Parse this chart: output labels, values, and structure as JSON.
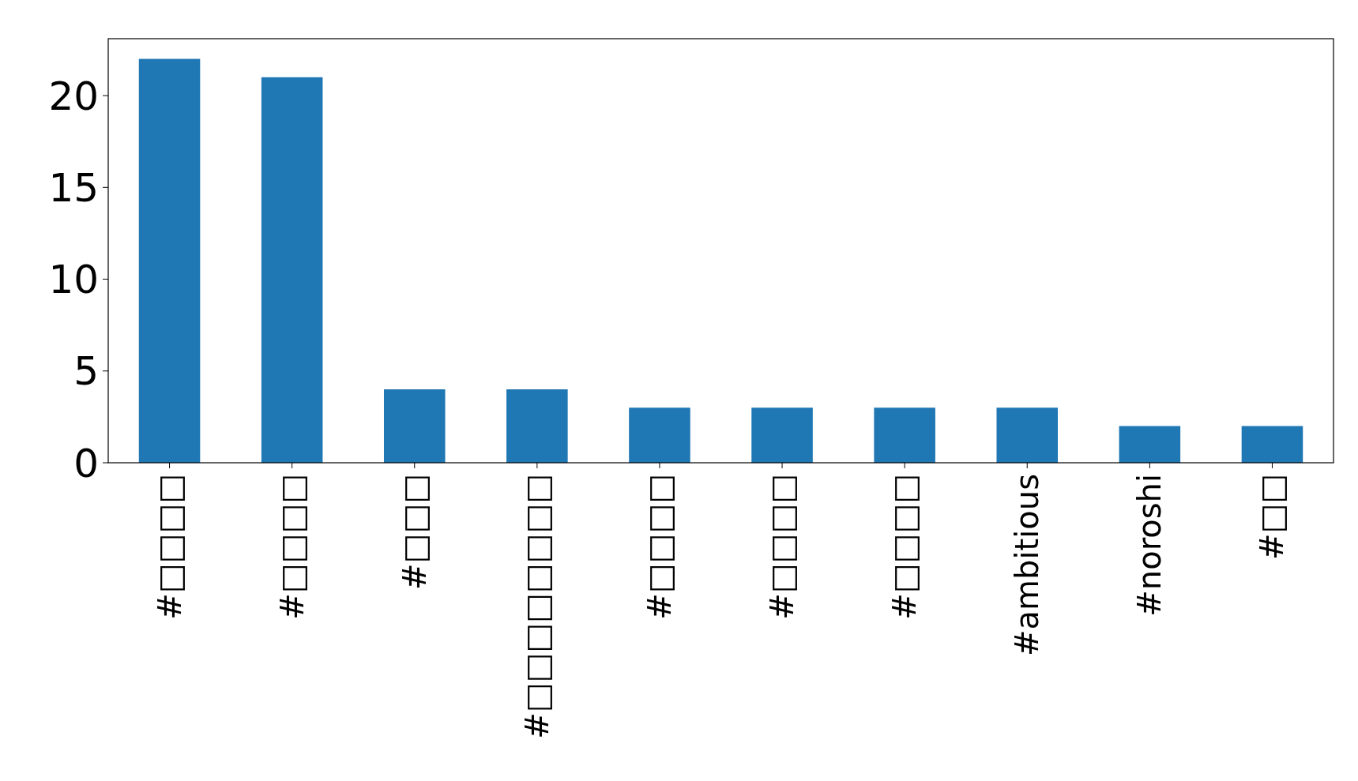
{
  "chart_data": {
    "type": "bar",
    "categories": [
      "#□□□□",
      "#□□□□",
      "#□□□",
      "#□□□□□□□□",
      "#□□□□",
      "#□□□□",
      "#□□□□",
      "#ambitious",
      "#noroshi",
      "#□□"
    ],
    "values": [
      22,
      21,
      4,
      4,
      3,
      3,
      3,
      3,
      2,
      2
    ],
    "color": "#1f77b4",
    "ylim": [
      0,
      23.1
    ],
    "yticks": [
      0,
      5,
      10,
      15,
      20
    ],
    "grid": false
  }
}
